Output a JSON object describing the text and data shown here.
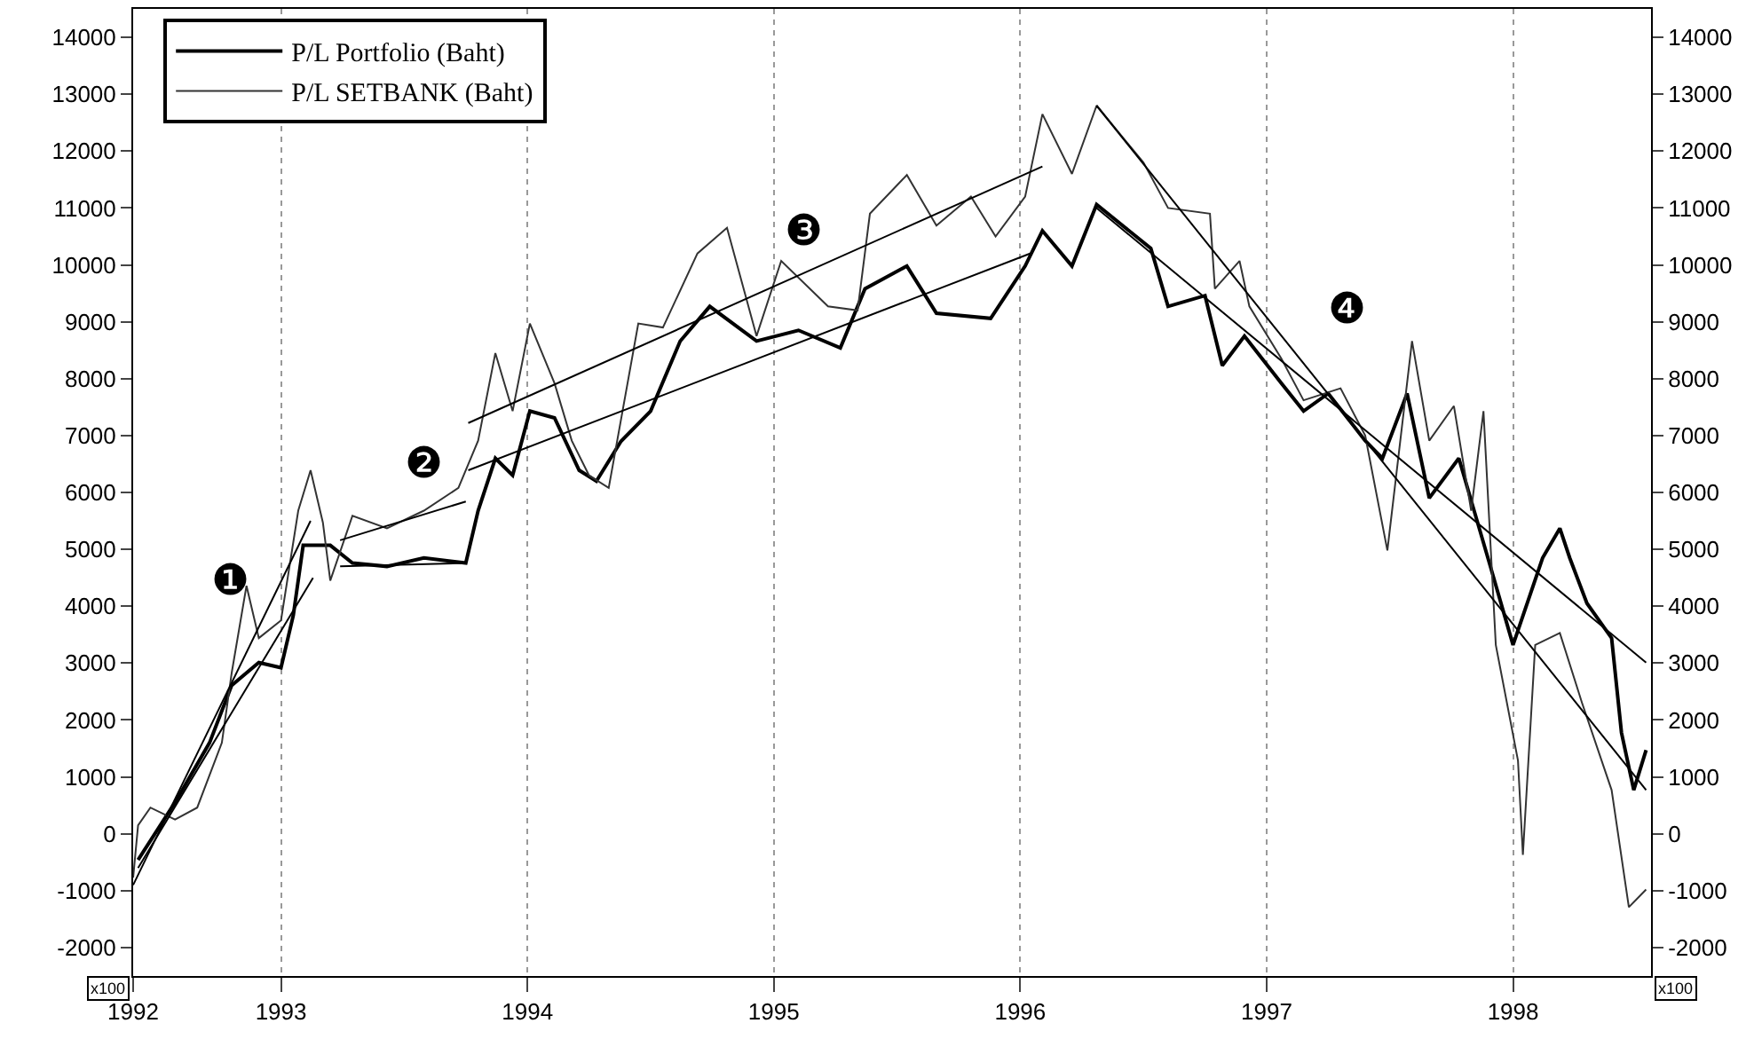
{
  "chart_data": {
    "type": "line",
    "xlim": [
      1992.4,
      1998.56
    ],
    "xticks": [
      {
        "value": 1992.4,
        "label": "1992"
      },
      1993,
      1994,
      1995,
      1996,
      1997,
      1998
    ],
    "ylim": [
      -2500,
      14500
    ],
    "yticks": [
      -2000,
      -1000,
      0,
      1000,
      2000,
      3000,
      4000,
      5000,
      6000,
      7000,
      8000,
      9000,
      10000,
      11000,
      12000,
      13000,
      14000
    ],
    "y2lim": [
      -2500,
      14500
    ],
    "y2ticks": [
      -2000,
      -1000,
      0,
      1000,
      2000,
      3000,
      4000,
      5000,
      6000,
      7000,
      8000,
      9000,
      10000,
      11000,
      12000,
      13000,
      14000
    ],
    "grid": "x",
    "legend": "top left",
    "marker": "none",
    "line_style": "solid",
    "series": [
      {
        "name": "P/L Portfolio (Baht)",
        "color": "#000000",
        "x": [
          1992.42,
          1992.57,
          1992.71,
          1992.8,
          1992.91,
          1993.0,
          1993.05,
          1993.09,
          1993.2,
          1993.29,
          1993.43,
          1993.58,
          1993.75,
          1993.8,
          1993.87,
          1993.94,
          1994.01,
          1994.11,
          1994.21,
          1994.28,
          1994.38,
          1994.5,
          1994.62,
          1994.74,
          1994.93,
          1995.1,
          1995.27,
          1995.37,
          1995.54,
          1995.66,
          1995.88,
          1996.02,
          1996.09,
          1996.21,
          1996.31,
          1996.53,
          1996.6,
          1996.75,
          1996.82,
          1996.91,
          1997.06,
          1997.15,
          1997.25,
          1997.4,
          1997.47,
          1997.57,
          1997.66,
          1997.78,
          1997.91,
          1998.0,
          1998.12,
          1998.19,
          1998.23,
          1998.3,
          1998.4,
          1998.44,
          1998.49,
          1998.54
        ],
        "values": [
          -460,
          550,
          1600,
          2610,
          3010,
          2920,
          3840,
          5070,
          5070,
          4760,
          4700,
          4850,
          4760,
          5680,
          6600,
          6300,
          7430,
          7310,
          6390,
          6200,
          6900,
          7430,
          8660,
          9270,
          8660,
          8850,
          8540,
          9580,
          9980,
          9150,
          9060,
          9980,
          10600,
          9980,
          11060,
          10290,
          9270,
          9460,
          8230,
          8750,
          7920,
          7430,
          7740,
          6910,
          6600,
          7740,
          5900,
          6600,
          4670,
          3320,
          4850,
          5370,
          4850,
          4050,
          3440,
          1780,
          770,
          1470
        ]
      },
      {
        "name": "P/L SETBANK (Baht)",
        "color": "#333333",
        "x": [
          1992.4,
          1992.42,
          1992.47,
          1992.57,
          1992.66,
          1992.76,
          1992.8,
          1992.86,
          1992.91,
          1993.0,
          1993.07,
          1993.12,
          1993.17,
          1993.2,
          1993.29,
          1993.43,
          1993.58,
          1993.72,
          1993.8,
          1993.87,
          1993.94,
          1994.01,
          1994.11,
          1994.18,
          1994.25,
          1994.33,
          1994.45,
          1994.55,
          1994.69,
          1994.81,
          1994.93,
          1995.03,
          1995.22,
          1995.34,
          1995.39,
          1995.54,
          1995.66,
          1995.8,
          1995.9,
          1996.02,
          1996.09,
          1996.21,
          1996.31,
          1996.5,
          1996.6,
          1996.77,
          1996.79,
          1996.89,
          1996.93,
          1997.06,
          1997.15,
          1997.3,
          1997.4,
          1997.49,
          1997.59,
          1997.66,
          1997.76,
          1997.83,
          1997.88,
          1997.93,
          1998.02,
          1998.04,
          1998.09,
          1998.19,
          1998.28,
          1998.4,
          1998.47,
          1998.54
        ],
        "values": [
          -770,
          150,
          460,
          250,
          460,
          1600,
          2830,
          4360,
          3440,
          3750,
          5680,
          6390,
          5470,
          4450,
          5590,
          5370,
          5680,
          6080,
          6910,
          8450,
          7430,
          8970,
          7920,
          6910,
          6300,
          6080,
          8970,
          8900,
          10200,
          10650,
          8750,
          10070,
          9270,
          9200,
          10900,
          11580,
          10690,
          11200,
          10500,
          11200,
          12650,
          11600,
          12800,
          11800,
          11000,
          10900,
          9580,
          10070,
          9270,
          8350,
          7620,
          7830,
          7000,
          4980,
          8660,
          6910,
          7520,
          5680,
          7430,
          3320,
          1290,
          -370,
          3320,
          3530,
          2300,
          770,
          -1290,
          -980
        ]
      },
      {
        "color": "#000000",
        "x": [
          1992.4,
          1993.12
        ],
        "values": [
          -900,
          5500
        ]
      },
      {
        "color": "#000000",
        "x": [
          1992.42,
          1993.13
        ],
        "values": [
          -600,
          4500
        ]
      },
      {
        "color": "#000000",
        "x": [
          1993.24,
          1993.75
        ],
        "values": [
          5160,
          5840
        ]
      },
      {
        "color": "#000000",
        "x": [
          1993.24,
          1993.75
        ],
        "values": [
          4700,
          4760
        ]
      },
      {
        "color": "#000000",
        "x": [
          1993.76,
          1996.09
        ],
        "values": [
          7220,
          11730
        ]
      },
      {
        "color": "#000000",
        "x": [
          1993.76,
          1996.04
        ],
        "values": [
          6390,
          10200
        ]
      },
      {
        "color": "#000000",
        "x": [
          1996.31,
          1998.54
        ],
        "values": [
          12800,
          770
        ]
      },
      {
        "color": "#000000",
        "x": [
          1996.31,
          1998.54
        ],
        "values": [
          11000,
          3010
        ]
      }
    ],
    "annotations": [
      "❶",
      "❷",
      "❸",
      "❹",
      "x100",
      "x100"
    ]
  }
}
